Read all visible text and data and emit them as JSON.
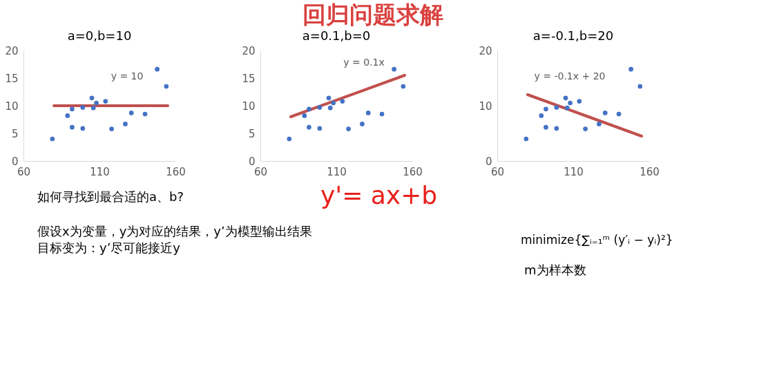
{
  "chart_data": [
    {
      "type": "scatter",
      "title": "a=0,b=10",
      "xlim": [
        60,
        160
      ],
      "xticks": [
        60,
        110,
        160
      ],
      "ylim": [
        0,
        20
      ],
      "yticks": [
        0,
        5,
        10,
        15,
        20
      ],
      "grid": false,
      "series": [
        {
          "type": "scatter",
          "marker": "circle",
          "color": "#4472c4",
          "x": [
            79,
            89,
            92,
            92,
            99,
            99,
            105,
            106,
            108,
            114,
            118,
            127,
            131,
            140,
            148,
            154
          ],
          "values": [
            4.0,
            8.2,
            9.4,
            6.1,
            9.7,
            5.9,
            11.4,
            9.6,
            10.5,
            10.8,
            5.8,
            6.7,
            8.7,
            8.5,
            16.6,
            13.5
          ]
        },
        {
          "type": "line",
          "color": "#c0504d",
          "x": [
            80,
            155
          ],
          "values": [
            10,
            10
          ]
        }
      ],
      "annotations": [
        "y = 10"
      ]
    },
    {
      "type": "scatter",
      "title": "a=0.1,b=0",
      "xlim": [
        60,
        160
      ],
      "xticks": [
        60,
        110,
        160
      ],
      "ylim": [
        0,
        20
      ],
      "yticks": [
        0,
        5,
        10,
        15,
        20
      ],
      "grid": false,
      "series": [
        {
          "type": "scatter",
          "marker": "circle",
          "color": "#4472c4",
          "x": [
            79,
            89,
            92,
            92,
            99,
            99,
            105,
            106,
            108,
            114,
            118,
            127,
            131,
            140,
            148,
            154
          ],
          "values": [
            4.0,
            8.2,
            9.4,
            6.1,
            9.7,
            5.9,
            11.4,
            9.6,
            10.5,
            10.8,
            5.8,
            6.7,
            8.7,
            8.5,
            16.6,
            13.5
          ]
        },
        {
          "type": "line",
          "color": "#c0504d",
          "x": [
            80,
            155
          ],
          "values": [
            8,
            15.5
          ]
        }
      ],
      "annotations": [
        "y = 0.1x"
      ]
    },
    {
      "type": "scatter",
      "title": "a=-0.1,b=20",
      "xlim": [
        60,
        160
      ],
      "xticks": [
        60,
        110,
        160
      ],
      "ylim": [
        0,
        20
      ],
      "yticks": [
        0,
        10,
        20
      ],
      "grid": false,
      "series": [
        {
          "type": "scatter",
          "marker": "circle",
          "color": "#4472c4",
          "x": [
            79,
            89,
            92,
            92,
            99,
            99,
            105,
            106,
            108,
            114,
            118,
            127,
            131,
            140,
            148,
            154
          ],
          "values": [
            4.0,
            8.2,
            9.4,
            6.1,
            9.7,
            5.9,
            11.4,
            9.6,
            10.5,
            10.8,
            5.8,
            6.7,
            8.7,
            8.5,
            16.6,
            13.5
          ]
        },
        {
          "type": "line",
          "color": "#c0504d",
          "x": [
            80,
            155
          ],
          "values": [
            12,
            4.5
          ]
        }
      ],
      "annotations": [
        "y = -0.1x + 20"
      ]
    },
    {
      "type": "other",
      "title": "回归问题求解",
      "annotations": [
        "如何寻找到最合适的a、b?",
        "y'= ax+b",
        "假设x为变量，y为对应的结果，y’为模型输出结果",
        "目标变为：y’尽可能接近y",
        "minimize{∑ᵢ₌₁ᵐ (y′ᵢ − yᵢ)²}",
        "m为样本数"
      ]
    }
  ]
}
